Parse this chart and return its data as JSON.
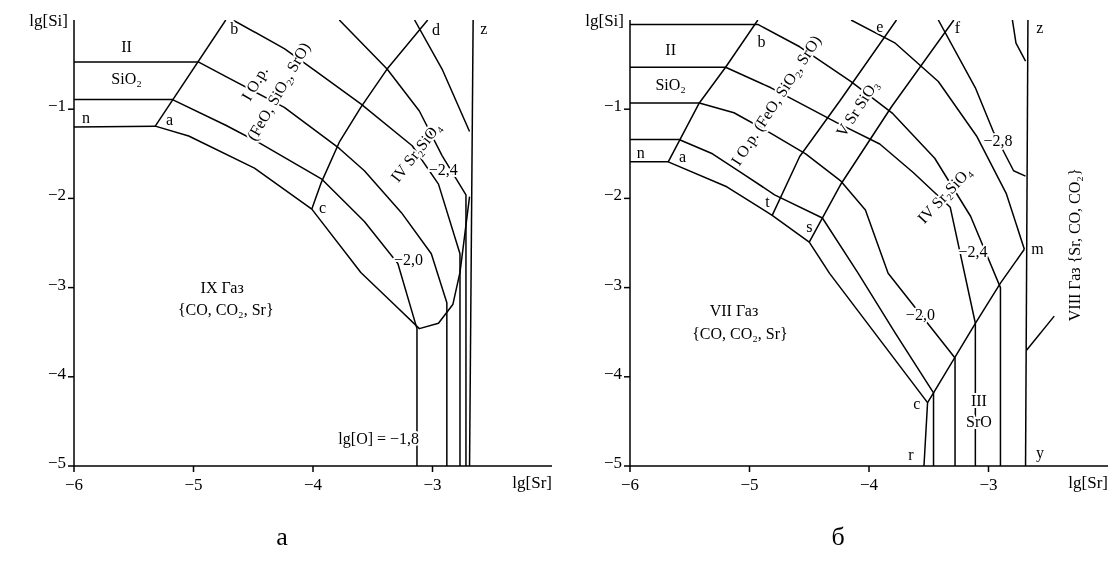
{
  "chart_data": [
    {
      "type": "line",
      "title": "а",
      "xlabel": "lg[Sr]",
      "ylabel": "lg[Si]",
      "xlim": [
        -6,
        -2
      ],
      "ylim": [
        -5,
        0
      ],
      "xticks": [
        -6,
        -5,
        -4,
        -3
      ],
      "yticks": [
        -5,
        -4,
        -3,
        -2,
        -1
      ],
      "series": [
        {
          "color": "#000000",
          "x": [
            -6,
            -5.32,
            -5.04,
            -4.49,
            -4.01,
            -3.6,
            -3.32,
            -3.11,
            -2.95,
            -2.83,
            -2.77,
            -2.75,
            -2.69
          ],
          "values": [
            -1.2,
            -1.19,
            -1.3,
            -1.66,
            -2.12,
            -2.83,
            -3.19,
            -3.46,
            -3.4,
            -3.19,
            -2.83,
            -2.62,
            -1.98
          ]
        },
        {
          "color": "#000000",
          "x": [
            -5.32,
            -4.73
          ],
          "values": [
            -1.19,
            0
          ]
        },
        {
          "color": "#000000",
          "x": [
            -4.01,
            -3.93,
            -3.78,
            -3.6,
            -3.38,
            -3.04
          ],
          "values": [
            -2.12,
            -1.82,
            -1.37,
            -0.98,
            -0.55,
            0
          ]
        },
        {
          "color": "#000000",
          "x": [
            -2.66,
            -2.69
          ],
          "values": [
            0,
            -5
          ]
        },
        {
          "color": "#000000",
          "x": [
            -6,
            -5.18,
            -4.73,
            -4.46,
            -3.93,
            -3.57,
            -3.29,
            -3.13,
            -3.13
          ],
          "values": [
            -0.89,
            -0.89,
            -1.18,
            -1.37,
            -1.78,
            -2.26,
            -2.73,
            -3.46,
            -5
          ]
        },
        {
          "color": "#000000",
          "x": [
            -6,
            -4.96,
            -4.72,
            -4.24,
            -3.78,
            -3.57,
            -3.26,
            -3.01,
            -2.88,
            -2.88
          ],
          "values": [
            -0.47,
            -0.47,
            -0.64,
            -0.98,
            -1.44,
            -1.69,
            -2.16,
            -2.62,
            -3.17,
            -5
          ]
        },
        {
          "color": "#000000",
          "x": [
            -4.67,
            -4.24,
            -3.98,
            -3.6,
            -3.17,
            -2.95,
            -2.77,
            -2.77
          ],
          "values": [
            0,
            -0.32,
            -0.57,
            -0.94,
            -1.41,
            -1.84,
            -2.62,
            -5
          ]
        },
        {
          "color": "#000000",
          "x": [
            -3.78,
            -3.38,
            -3.11,
            -2.92,
            -2.72,
            -2.72
          ],
          "values": [
            0,
            -0.55,
            -1.02,
            -1.52,
            -1.96,
            -5
          ]
        },
        {
          "color": "#000000",
          "x": [
            -3.15,
            -2.92,
            -2.69
          ],
          "values": [
            0,
            -0.55,
            -1.25
          ]
        }
      ],
      "annotations": [
        "II",
        "SiO₂",
        "n",
        "a",
        "b",
        "d",
        "z",
        "c",
        "I O.p.",
        "(FeO, SiO₂, SrO)",
        "IV Sr₂SiO₄",
        "−2,4",
        "−2,0",
        "IX Газ",
        "{CO, CO₂, Sr}",
        "lg[O] = −1,8"
      ]
    },
    {
      "type": "line",
      "title": "б",
      "xlabel": "lg[Sr]",
      "ylabel": "lg[Si]",
      "xlim": [
        -6,
        -2
      ],
      "ylim": [
        -5,
        0
      ],
      "xticks": [
        -6,
        -5,
        -4,
        -3
      ],
      "yticks": [
        -5,
        -4,
        -3,
        -2,
        -1
      ],
      "series": [
        {
          "color": "#000000",
          "x": [
            -6,
            -5.68,
            -5.19,
            -4.81,
            -4.5,
            -4.33,
            -3.51,
            -3.54
          ],
          "values": [
            -1.59,
            -1.59,
            -1.87,
            -2.19,
            -2.49,
            -2.84,
            -4.29,
            -5
          ]
        },
        {
          "color": "#000000",
          "x": [
            -5.68,
            -5.42,
            -5.2,
            -4.93
          ],
          "values": [
            -1.59,
            -0.93,
            -0.53,
            0
          ]
        },
        {
          "color": "#000000",
          "x": [
            -4.81,
            -4.58,
            -4.24,
            -3.77
          ],
          "values": [
            -2.19,
            -1.53,
            -0.9,
            0
          ]
        },
        {
          "color": "#000000",
          "x": [
            -4.5,
            -4.24,
            -3.81,
            -3.29
          ],
          "values": [
            -2.49,
            -1.85,
            -0.97,
            0
          ]
        },
        {
          "color": "#000000",
          "x": [
            -3.51,
            -3.46,
            -3.11,
            -2.9,
            -2.7
          ],
          "values": [
            -4.29,
            -4.18,
            -3.4,
            -2.95,
            -2.57
          ]
        },
        {
          "color": "#000000",
          "x": [
            -2.67,
            -2.69
          ],
          "values": [
            0,
            -5
          ]
        },
        {
          "color": "#000000",
          "x": [
            -6,
            -5.59,
            -5.31,
            -5.07,
            -4.79,
            -4.39,
            -4.09,
            -3.78,
            -3.46,
            -3.46
          ],
          "values": [
            -1.34,
            -1.34,
            -1.5,
            -1.71,
            -1.96,
            -2.22,
            -2.84,
            -3.51,
            -4.18,
            -5
          ]
        },
        {
          "color": "#000000",
          "x": [
            -6,
            -5.42,
            -5.13,
            -4.82,
            -4.53,
            -4.24,
            -4.03,
            -3.84,
            -3.28,
            -3.28
          ],
          "values": [
            -0.93,
            -0.93,
            -1.04,
            -1.27,
            -1.5,
            -1.8,
            -2.13,
            -2.84,
            -3.79,
            -5
          ]
        },
        {
          "color": "#000000",
          "x": [
            -6,
            -5.2,
            -4.82,
            -4.27,
            -3.91,
            -3.63,
            -3.32,
            -3.11,
            -3.11
          ],
          "values": [
            -0.53,
            -0.53,
            -0.76,
            -1.15,
            -1.39,
            -1.71,
            -2.1,
            -3.4,
            -5
          ]
        },
        {
          "color": "#000000",
          "x": [
            -6,
            -4.93,
            -4.58,
            -4.15,
            -3.8,
            -3.45,
            -3.15,
            -2.9,
            -2.9
          ],
          "values": [
            -0.05,
            -0.05,
            -0.3,
            -0.69,
            -1.05,
            -1.55,
            -2.2,
            -3.0,
            -5
          ]
        },
        {
          "color": "#000000",
          "x": [
            -4.15,
            -3.78,
            -3.42,
            -3.1,
            -2.85,
            -2.7
          ],
          "values": [
            0,
            -0.26,
            -0.69,
            -1.3,
            -1.95,
            -2.57
          ]
        },
        {
          "color": "#000000",
          "x": [
            -3.42,
            -3.11,
            -2.96,
            -2.79,
            -2.69
          ],
          "values": [
            0,
            -0.76,
            -1.25,
            -1.69,
            -1.75
          ]
        },
        {
          "color": "#000000",
          "x": [
            -2.8,
            -2.77,
            -2.69
          ],
          "values": [
            0,
            -0.26,
            -0.46
          ]
        },
        {
          "color": "#000000",
          "x": [
            -2.68,
            -2.45
          ],
          "values": [
            -3.7,
            -3.32
          ]
        }
      ],
      "annotations": [
        "II",
        "SiO₂",
        "n",
        "a",
        "b",
        "e",
        "f",
        "z",
        "t",
        "s",
        "m",
        "c",
        "r",
        "y",
        "I O.p. (FeO, SiO₂, SrO)",
        "V Sr SiO₃",
        "IV Sr₂SiO₄",
        "−2,8",
        "−2,4",
        "−2,0",
        "VII Газ",
        "{CO, CO₂, Sr}",
        "III",
        "SrO",
        "VIII Газ {Sr, CO, CO₂}"
      ]
    }
  ]
}
